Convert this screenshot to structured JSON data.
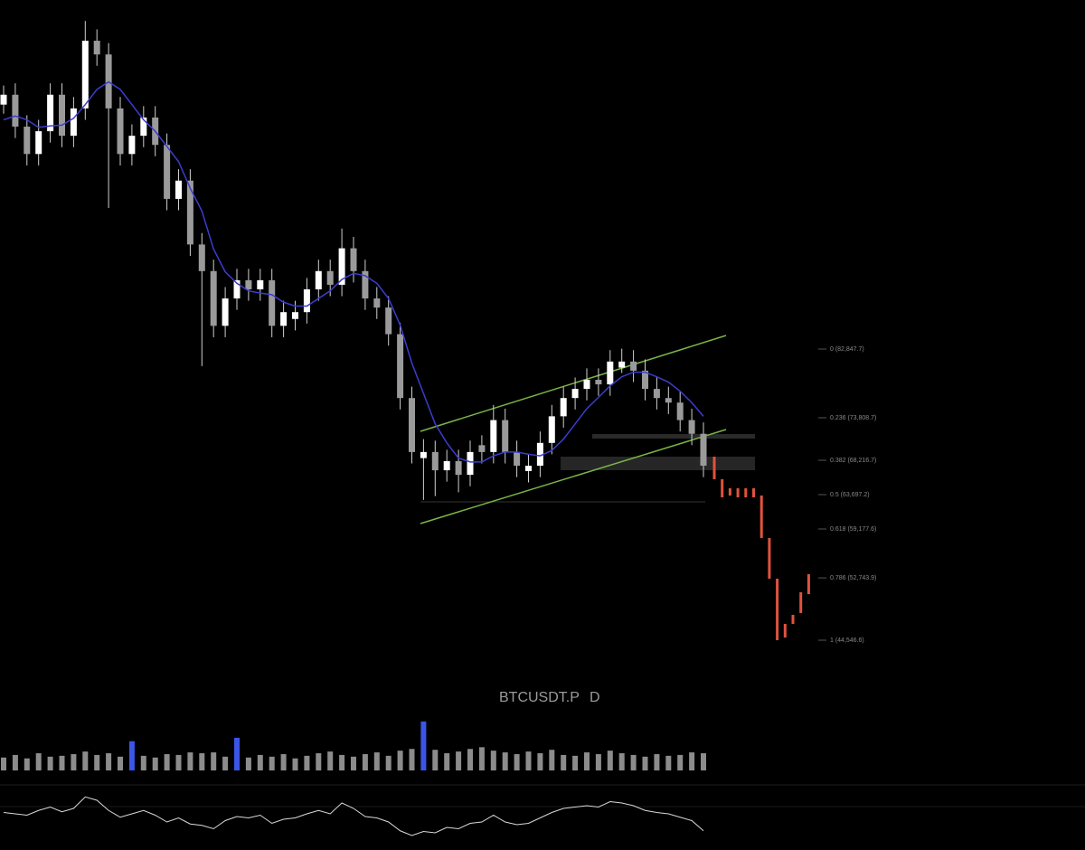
{
  "chart_data": {
    "type": "candlestick",
    "symbol": "BTCUSDT.P",
    "interval": "D",
    "ylim": [
      38360,
      128760
    ],
    "up_color": "#ffffff",
    "down_color": "#9a9a9a",
    "wick_color": "#cfcfcf",
    "candles": [
      [
        115000,
        117500,
        113800,
        116300
      ],
      [
        116300,
        117800,
        110600,
        112100
      ],
      [
        112100,
        113600,
        107000,
        108500
      ],
      [
        108500,
        113000,
        107000,
        111500
      ],
      [
        111500,
        117800,
        110000,
        116300
      ],
      [
        116300,
        117800,
        109400,
        110900
      ],
      [
        110900,
        116000,
        109400,
        114500
      ],
      [
        114500,
        126000,
        113000,
        123400
      ],
      [
        123400,
        124900,
        120100,
        121600
      ],
      [
        121600,
        123100,
        101400,
        114500
      ],
      [
        114500,
        116000,
        107000,
        108500
      ],
      [
        108500,
        112400,
        107000,
        110900
      ],
      [
        110900,
        114800,
        109400,
        113300
      ],
      [
        113300,
        114800,
        108200,
        109700
      ],
      [
        109700,
        111200,
        101100,
        102600
      ],
      [
        102600,
        106500,
        101100,
        105000
      ],
      [
        105000,
        106500,
        95100,
        96600
      ],
      [
        96600,
        98100,
        80600,
        93100
      ],
      [
        93100,
        94600,
        84400,
        85900
      ],
      [
        85900,
        91000,
        84400,
        89500
      ],
      [
        89500,
        93400,
        88000,
        91900
      ],
      [
        91900,
        93400,
        89200,
        90700
      ],
      [
        90700,
        93400,
        89200,
        91900
      ],
      [
        91900,
        93400,
        84400,
        85900
      ],
      [
        85900,
        89200,
        84400,
        87700
      ],
      [
        86800,
        89200,
        85300,
        87700
      ],
      [
        87700,
        92200,
        86200,
        90700
      ],
      [
        90700,
        94600,
        89200,
        93100
      ],
      [
        93100,
        94600,
        89800,
        91300
      ],
      [
        91300,
        98700,
        89800,
        96100
      ],
      [
        96100,
        97600,
        91600,
        93100
      ],
      [
        93100,
        94600,
        88000,
        89500
      ],
      [
        89500,
        91000,
        86800,
        88300
      ],
      [
        88300,
        89800,
        83300,
        84800
      ],
      [
        84800,
        86300,
        74900,
        76400
      ],
      [
        76400,
        77900,
        67800,
        69300
      ],
      [
        68500,
        71000,
        63000,
        69300
      ],
      [
        69300,
        70800,
        63500,
        66900
      ],
      [
        66900,
        69600,
        65400,
        68100
      ],
      [
        68100,
        69600,
        64000,
        66300
      ],
      [
        66300,
        70800,
        64800,
        69300
      ],
      [
        70200,
        71500,
        67800,
        69300
      ],
      [
        69300,
        75500,
        67800,
        73500
      ],
      [
        73500,
        75000,
        67800,
        69300
      ],
      [
        69300,
        70800,
        66000,
        67500
      ],
      [
        66800,
        69000,
        65300,
        67500
      ],
      [
        67500,
        72000,
        66000,
        70500
      ],
      [
        70500,
        75500,
        69000,
        74000
      ],
      [
        74000,
        77900,
        72500,
        76400
      ],
      [
        76400,
        79100,
        74900,
        77600
      ],
      [
        77600,
        80300,
        76100,
        78800
      ],
      [
        78800,
        80300,
        76700,
        78200
      ],
      [
        78200,
        82700,
        76700,
        81200
      ],
      [
        80400,
        82900,
        79700,
        81200
      ],
      [
        81200,
        82700,
        78500,
        80000
      ],
      [
        80000,
        81500,
        76100,
        77600
      ],
      [
        77600,
        79100,
        74900,
        76400
      ],
      [
        76400,
        77900,
        74300,
        75800
      ],
      [
        75800,
        77300,
        72000,
        73500
      ],
      [
        73500,
        75000,
        70200,
        71700
      ],
      [
        71700,
        73200,
        66000,
        67500
      ]
    ],
    "ma": {
      "color": "#3c3ccf",
      "values": [
        113000,
        113500,
        113000,
        112000,
        112200,
        112300,
        113200,
        115000,
        117000,
        118000,
        117000,
        115000,
        113000,
        111500,
        109500,
        107500,
        104000,
        101000,
        96000,
        93000,
        91500,
        90500,
        90200,
        90000,
        89000,
        88500,
        88500,
        89500,
        90500,
        92000,
        92800,
        92500,
        91500,
        89500,
        86000,
        81000,
        77000,
        73000,
        70500,
        68500,
        68000,
        68000,
        68800,
        69300,
        69300,
        69000,
        68800,
        69500,
        71000,
        73000,
        75000,
        76500,
        78000,
        79200,
        79800,
        79800,
        79200,
        78500,
        77300,
        75800,
        74000
      ]
    },
    "projection": {
      "color": "#e0533d",
      "bars": [
        [
          68690,
          65720
        ],
        [
          65720,
          63340
        ],
        [
          64530,
          63580
        ],
        [
          64530,
          63340
        ],
        [
          64530,
          63340
        ],
        [
          64530,
          63340
        ],
        [
          63580,
          57990
        ],
        [
          57990,
          52640
        ],
        [
          52640,
          44550
        ],
        [
          44900,
          46690
        ],
        [
          46690,
          47880
        ],
        [
          48120,
          50850
        ],
        [
          50610,
          53230
        ]
      ]
    },
    "fib_levels": [
      {
        "value": 82847.7,
        "label": "0 (82,847.7)"
      },
      {
        "value": 73808.7,
        "label": "0.236 (73,808.7)"
      },
      {
        "value": 68216.7,
        "label": "0.382 (68,216.7)"
      },
      {
        "value": 63697.2,
        "label": "0.5 (63,697.2)"
      },
      {
        "value": 59177.6,
        "label": "0.618 (59,177.6)"
      },
      {
        "value": 52743.9,
        "label": "0.786 (52,743.9)"
      },
      {
        "value": 44546.6,
        "label": "1 (44,546.6)"
      }
    ],
    "volume": {
      "ylim": [
        0,
        60
      ],
      "values": [
        15,
        18,
        14,
        20,
        16,
        17,
        19,
        22,
        18,
        20,
        16,
        34,
        17,
        15,
        19,
        18,
        21,
        20,
        21,
        16,
        38,
        15,
        18,
        16,
        19,
        14,
        17,
        20,
        22,
        18,
        16,
        19,
        21,
        17,
        23,
        25,
        57,
        24,
        20,
        22,
        25,
        27,
        23,
        21,
        19,
        22,
        20,
        24,
        18,
        17,
        21,
        19,
        23,
        20,
        18,
        16,
        19,
        17,
        18,
        21,
        20
      ],
      "colors": [
        "#8c8c8c",
        "#8c8c8c",
        "#8c8c8c",
        "#8c8c8c",
        "#8c8c8c",
        "#8c8c8c",
        "#8c8c8c",
        "#8c8c8c",
        "#8c8c8c",
        "#8c8c8c",
        "#8c8c8c",
        "#3b55e6",
        "#8c8c8c",
        "#8c8c8c",
        "#8c8c8c",
        "#8c8c8c",
        "#8c8c8c",
        "#8c8c8c",
        "#8c8c8c",
        "#8c8c8c",
        "#3b55e6",
        "#8c8c8c",
        "#8c8c8c",
        "#8c8c8c",
        "#8c8c8c",
        "#8c8c8c",
        "#8c8c8c",
        "#8c8c8c",
        "#8c8c8c",
        "#8c8c8c",
        "#8c8c8c",
        "#8c8c8c",
        "#8c8c8c",
        "#8c8c8c",
        "#8c8c8c",
        "#8c8c8c",
        "#3b55e6",
        "#8c8c8c",
        "#8c8c8c",
        "#8c8c8c",
        "#8c8c8c",
        "#8c8c8c",
        "#8c8c8c",
        "#8c8c8c",
        "#8c8c8c",
        "#8c8c8c",
        "#8c8c8c",
        "#8c8c8c",
        "#8c8c8c",
        "#8c8c8c",
        "#8c8c8c",
        "#8c8c8c",
        "#8c8c8c",
        "#8c8c8c",
        "#8c8c8c",
        "#8c8c8c",
        "#8c8c8c",
        "#8c8c8c",
        "#8c8c8c",
        "#8c8c8c",
        "#8c8c8c"
      ]
    },
    "oscillator": {
      "ylim": [
        10,
        90
      ],
      "color": "#d9d9d9",
      "values": [
        52,
        50,
        48,
        55,
        60,
        53,
        58,
        75,
        70,
        55,
        45,
        50,
        55,
        48,
        38,
        44,
        35,
        33,
        28,
        40,
        46,
        44,
        48,
        36,
        42,
        44,
        50,
        55,
        50,
        66,
        58,
        46,
        44,
        38,
        25,
        18,
        24,
        22,
        30,
        28,
        36,
        38,
        48,
        38,
        34,
        36,
        44,
        52,
        58,
        60,
        62,
        60,
        68,
        66,
        62,
        55,
        52,
        50,
        45,
        40,
        25
      ]
    }
  }
}
